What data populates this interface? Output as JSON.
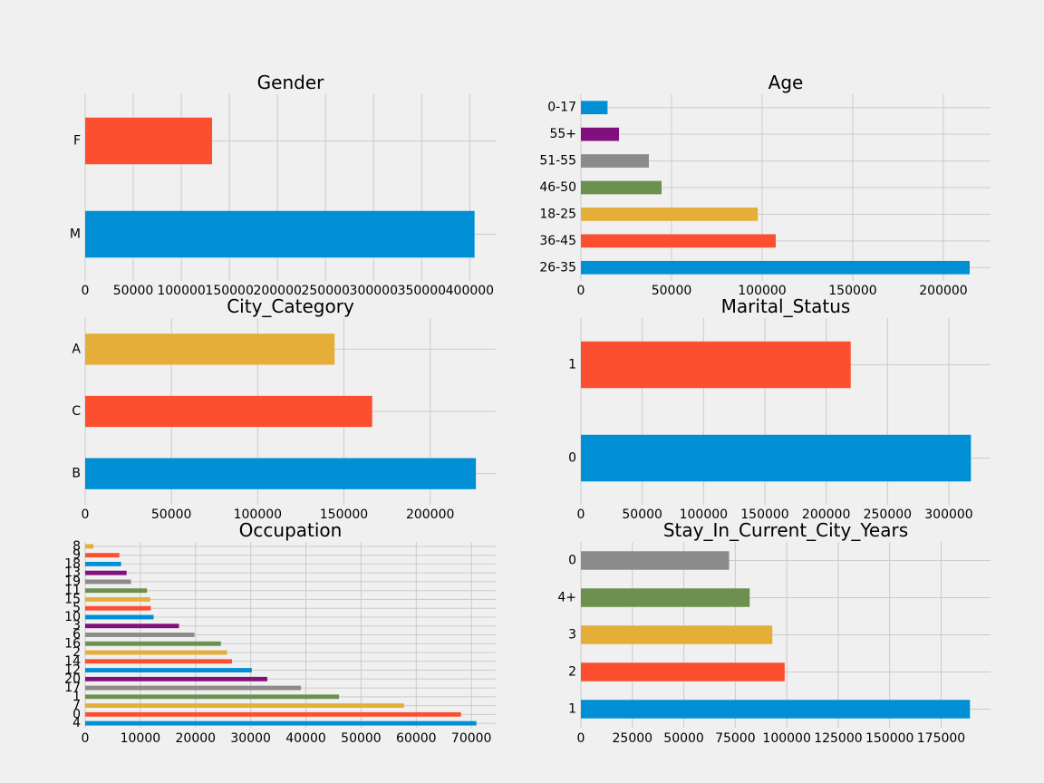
{
  "chart_data": [
    {
      "type": "bar",
      "orientation": "horizontal",
      "title": "Gender",
      "categories": [
        "M",
        "F"
      ],
      "values": [
        405000,
        132000
      ],
      "xlim": [
        0,
        427000
      ],
      "xticks": [
        "0",
        "50000",
        "100000",
        "150000",
        "200000",
        "250000",
        "300000",
        "350000",
        "400000"
      ],
      "xtick_values": [
        0,
        50000,
        100000,
        150000,
        200000,
        250000,
        300000,
        350000,
        400000
      ],
      "colors": [
        "#008fd5",
        "#fc4f30"
      ],
      "grid": true
    },
    {
      "type": "bar",
      "orientation": "horizontal",
      "title": "Age",
      "categories": [
        "26-35",
        "36-45",
        "18-25",
        "46-50",
        "51-55",
        "55+",
        "0-17"
      ],
      "values": [
        214500,
        107500,
        97600,
        44500,
        37500,
        21000,
        14700
      ],
      "xlim": [
        0,
        226000
      ],
      "xticks": [
        "0",
        "50000",
        "100000",
        "150000",
        "200000"
      ],
      "xtick_values": [
        0,
        50000,
        100000,
        150000,
        200000
      ],
      "colors": [
        "#008fd5",
        "#fc4f30",
        "#e5ae38",
        "#6d904f",
        "#8b8b8b",
        "#810f7c",
        "#008fd5"
      ],
      "grid": true
    },
    {
      "type": "bar",
      "orientation": "horizontal",
      "title": "City_Category",
      "categories": [
        "B",
        "C",
        "A"
      ],
      "values": [
        226500,
        166400,
        144600
      ],
      "xlim": [
        0,
        238000
      ],
      "xticks": [
        "0",
        "50000",
        "100000",
        "150000",
        "200000"
      ],
      "xtick_values": [
        0,
        50000,
        100000,
        150000,
        200000
      ],
      "colors": [
        "#008fd5",
        "#fc4f30",
        "#e5ae38"
      ],
      "grid": true
    },
    {
      "type": "bar",
      "orientation": "horizontal",
      "title": "Marital_Status",
      "categories": [
        "0",
        "1"
      ],
      "values": [
        318000,
        220000
      ],
      "xlim": [
        0,
        334000
      ],
      "xticks": [
        "0",
        "50000",
        "100000",
        "150000",
        "200000",
        "250000",
        "300000"
      ],
      "xtick_values": [
        0,
        50000,
        100000,
        150000,
        200000,
        250000,
        300000
      ],
      "colors": [
        "#008fd5",
        "#fc4f30"
      ],
      "grid": true
    },
    {
      "type": "bar",
      "orientation": "horizontal",
      "title": "Occupation",
      "categories": [
        "4",
        "0",
        "7",
        "1",
        "17",
        "20",
        "12",
        "14",
        "2",
        "16",
        "6",
        "3",
        "10",
        "5",
        "15",
        "11",
        "19",
        "13",
        "18",
        "9",
        "8"
      ],
      "values": [
        70900,
        68100,
        57800,
        46000,
        39100,
        33000,
        30200,
        26600,
        25700,
        24600,
        19800,
        17000,
        12400,
        11900,
        11800,
        11200,
        8300,
        7500,
        6500,
        6200,
        1500
      ],
      "xlim": [
        0,
        74400
      ],
      "xticks": [
        "0",
        "10000",
        "20000",
        "30000",
        "40000",
        "50000",
        "60000",
        "70000"
      ],
      "xtick_values": [
        0,
        10000,
        20000,
        30000,
        40000,
        50000,
        60000,
        70000
      ],
      "colors": [
        "#008fd5",
        "#fc4f30",
        "#e5ae38",
        "#6d904f",
        "#8b8b8b",
        "#810f7c"
      ],
      "grid": true
    },
    {
      "type": "bar",
      "orientation": "horizontal",
      "title": "Stay_In_Current_City_Years",
      "categories": [
        "1",
        "2",
        "3",
        "4+",
        "0"
      ],
      "values": [
        189000,
        99000,
        93000,
        82000,
        72000
      ],
      "xlim": [
        0,
        199000
      ],
      "xticks": [
        "0",
        "25000",
        "50000",
        "75000",
        "100000",
        "125000",
        "150000",
        "175000"
      ],
      "xtick_values": [
        0,
        25000,
        50000,
        75000,
        100000,
        125000,
        150000,
        175000
      ],
      "colors": [
        "#008fd5",
        "#fc4f30",
        "#e5ae38",
        "#6d904f",
        "#8b8b8b"
      ],
      "grid": true
    }
  ]
}
